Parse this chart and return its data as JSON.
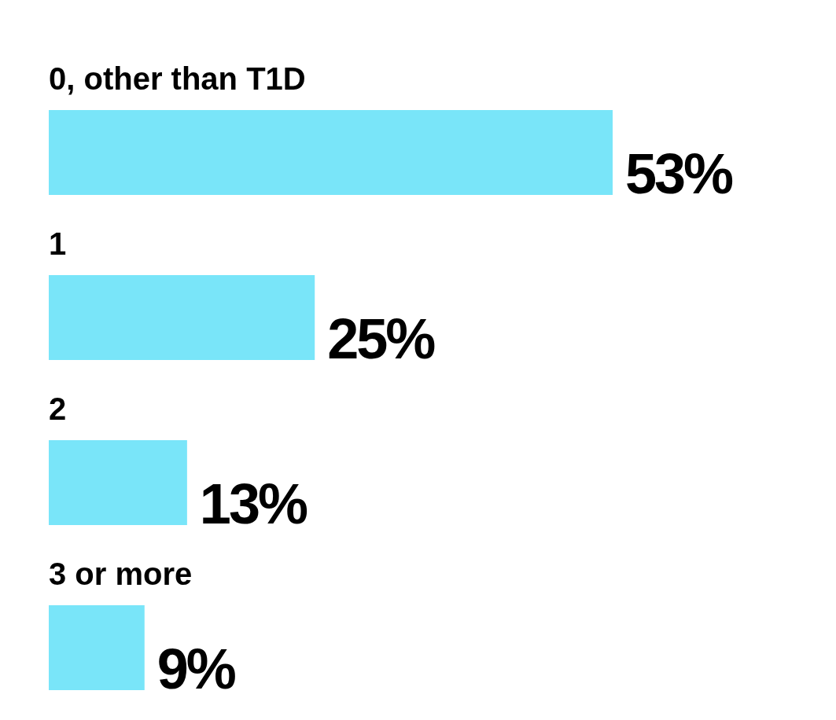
{
  "chart_data": {
    "type": "bar",
    "orientation": "horizontal",
    "categories": [
      "0, other than T1D",
      "1",
      "2",
      "3 or more"
    ],
    "values": [
      53,
      25,
      13,
      9
    ],
    "value_labels": [
      "53%",
      "25%",
      "13%",
      "9%"
    ],
    "color": "#79e5f9"
  }
}
